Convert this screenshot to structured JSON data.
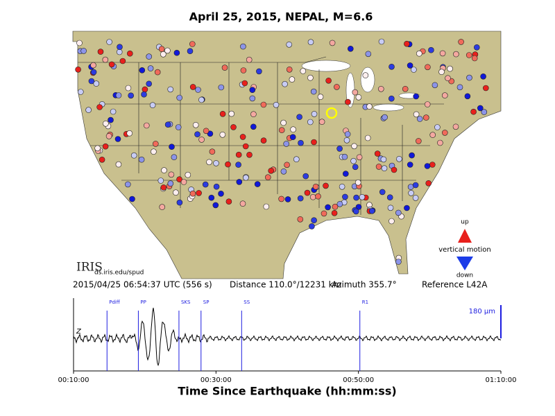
{
  "title": "April 25, 2015, NEPAL, M=6.6",
  "info": {
    "origin_time": "2015/04/25 06:54:37 UTC (556 s)",
    "distance": "Distance 110.0°/12231 km",
    "azimuth": "Azimuth 355.7°",
    "reference": "Reference L42A"
  },
  "map": {
    "logo": "IRIS",
    "url": "ds.iris.edu/spud",
    "legend": {
      "up": "up",
      "label": "vertical motion",
      "down": "down"
    }
  },
  "chart_data": {
    "type": "seismogram",
    "component": "Z",
    "scale_label": "180 µm",
    "x_label": "Time Since Earthquake (hh:mm:ss)",
    "xlim": [
      10,
      70
    ],
    "xticks": [
      {
        "value": 10,
        "label": "00:10:00"
      },
      {
        "value": 30,
        "label": "00:30:00"
      },
      {
        "value": 50,
        "label": "00:50:00"
      },
      {
        "value": 70,
        "label": "01:10:00"
      }
    ],
    "phases": {
      "names": [
        "Pdiff",
        "PP",
        "SKS",
        "SP",
        "SS",
        "R1"
      ],
      "x": [
        14.7,
        19.1,
        24.8,
        27.9,
        33.6,
        50.2
      ]
    }
  }
}
